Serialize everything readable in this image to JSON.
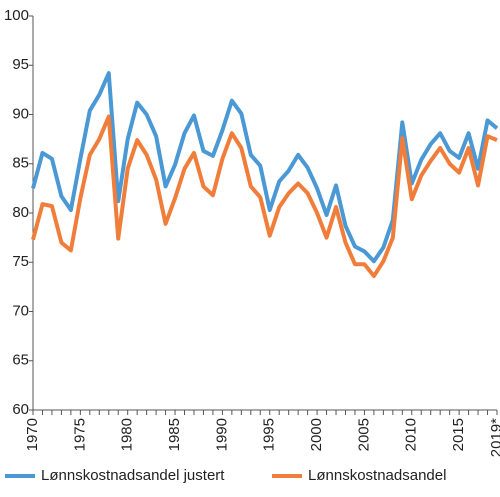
{
  "chart_data": {
    "type": "line",
    "categories": [
      "1970",
      null,
      null,
      null,
      null,
      "1975",
      null,
      null,
      null,
      null,
      "1980",
      null,
      null,
      null,
      null,
      "1985",
      null,
      null,
      null,
      null,
      "1990",
      null,
      null,
      null,
      null,
      "1995",
      null,
      null,
      null,
      null,
      "2000",
      null,
      null,
      null,
      null,
      "2005",
      null,
      null,
      null,
      null,
      "2010",
      null,
      null,
      null,
      null,
      "2015",
      null,
      null,
      null,
      "2019*"
    ],
    "series": [
      {
        "name": "Lønnskostnadsandel justert",
        "color": "#4a98d4",
        "values": [
          82.5,
          86.1,
          85.5,
          81.7,
          80.3,
          85.5,
          90.4,
          92.0,
          94.2,
          81.2,
          87.5,
          91.2,
          90.0,
          87.8,
          82.7,
          84.9,
          88.1,
          89.9,
          86.3,
          85.8,
          88.4,
          91.4,
          90.1,
          85.9,
          84.8,
          80.3,
          83.2,
          84.3,
          85.9,
          84.6,
          82.5,
          79.8,
          82.8,
          78.7,
          76.6,
          76.1,
          75.1,
          76.5,
          79.3,
          89.2,
          83.0,
          85.4,
          87.0,
          88.1,
          86.3,
          85.6,
          88.1,
          84.5,
          89.4,
          88.6
        ]
      },
      {
        "name": "Lønnskostnadsandel",
        "color": "#f07d3a",
        "values": [
          77.3,
          80.9,
          80.7,
          77.0,
          76.2,
          81.5,
          85.9,
          87.5,
          89.8,
          77.4,
          84.5,
          87.4,
          85.9,
          83.4,
          78.9,
          81.5,
          84.5,
          86.1,
          82.7,
          81.8,
          85.5,
          88.1,
          86.6,
          82.7,
          81.6,
          77.7,
          80.6,
          82.0,
          83.0,
          82.0,
          80.0,
          77.5,
          80.6,
          77.0,
          74.8,
          74.8,
          73.6,
          75.1,
          77.5,
          87.6,
          81.4,
          83.8,
          85.3,
          86.6,
          85.0,
          84.1,
          86.6,
          82.8,
          87.8,
          87.4
        ]
      }
    ],
    "ylim": [
      60,
      100
    ],
    "yticks": [
      60,
      65,
      70,
      75,
      80,
      85,
      90,
      95,
      100
    ],
    "legend": "bottom"
  }
}
